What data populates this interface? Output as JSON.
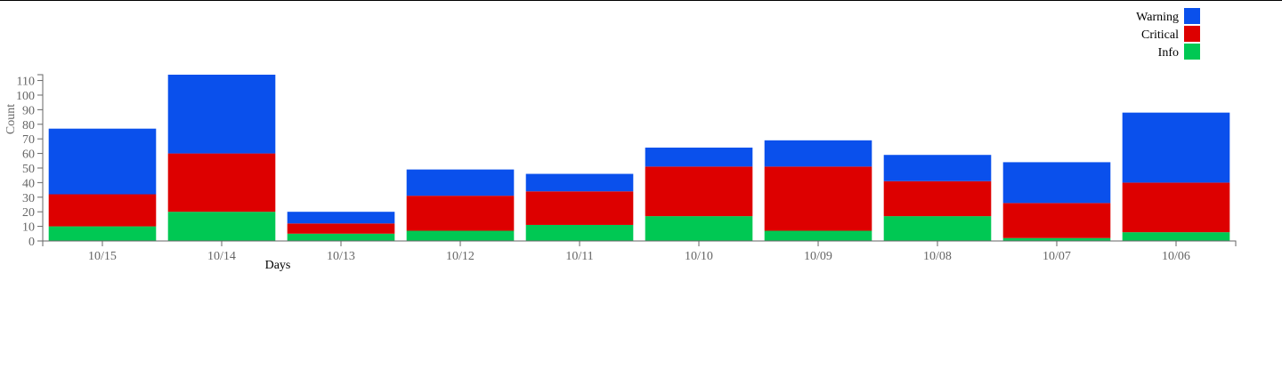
{
  "chart_data": {
    "type": "bar",
    "stacked": true,
    "categories": [
      "10/15",
      "10/14",
      "10/13",
      "10/12",
      "10/11",
      "10/10",
      "10/09",
      "10/08",
      "10/07",
      "10/06"
    ],
    "series": [
      {
        "name": "Info",
        "color": "#00c853",
        "values": [
          10,
          20,
          5,
          7,
          11,
          17,
          7,
          17,
          2,
          6
        ]
      },
      {
        "name": "Critical",
        "color": "#dd0000",
        "values": [
          22,
          40,
          7,
          24,
          23,
          34,
          44,
          24,
          24,
          34
        ]
      },
      {
        "name": "Warning",
        "color": "#0a50ec",
        "values": [
          45,
          54,
          8,
          18,
          12,
          13,
          18,
          18,
          28,
          48
        ]
      }
    ],
    "legend_order": [
      "Warning",
      "Critical",
      "Info"
    ],
    "legend_position": "top-right",
    "xlabel": "Days",
    "ylabel": "Count",
    "ylim": [
      0,
      114
    ],
    "yticks": [
      0,
      10,
      20,
      30,
      40,
      50,
      60,
      70,
      80,
      90,
      100,
      110
    ],
    "grid": false
  }
}
